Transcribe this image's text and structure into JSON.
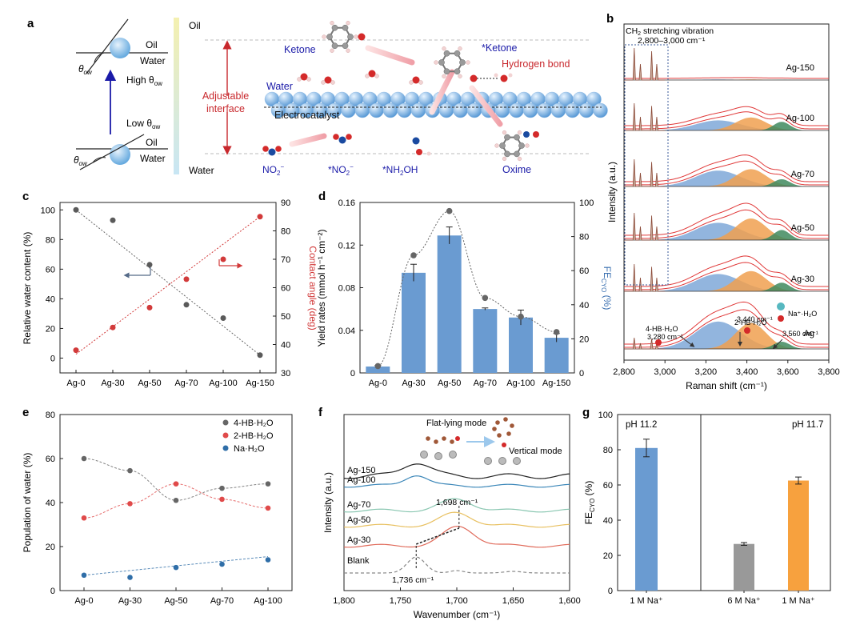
{
  "panel_labels": {
    "a": "a",
    "b": "b",
    "c": "c",
    "d": "d",
    "e": "e",
    "f": "f",
    "g": "g"
  },
  "schematic": {
    "oil_water_top": {
      "oil": "Oil",
      "water": "Water",
      "theta": "θ",
      "theta_sub": "ow",
      "note": "High θ",
      "note_sub": "ow"
    },
    "oil_water_bottom": {
      "oil": "Oil",
      "water": "Water",
      "theta": "θ",
      "theta_sub": "ow",
      "note": "Low θ",
      "note_sub": "ow"
    },
    "gradient_top": "Oil",
    "gradient_bottom": "Water",
    "interface_line1": "Adjustable",
    "interface_line2": "interface",
    "labels": {
      "ketone": "Ketone",
      "star_ketone": "*Ketone",
      "hydrogen_bond": "Hydrogen bond",
      "water": "Water",
      "electrocatalyst": "Electrocatalyst",
      "no2": "NO",
      "no2_sub": "2",
      "no2_sup": "−",
      "star_no2": "*NO",
      "star_no2_sub": "2",
      "star_no2_sup": "−",
      "star_nh2oh": "*NH",
      "star_nh2oh_sub": "2",
      "star_nh2oh_tail": "OH",
      "oxime": "Oxime"
    }
  },
  "chart_data": [
    {
      "panel": "b",
      "type": "line",
      "xlabel": "Raman shift (cm⁻¹)",
      "ylabel": "Intensity (a.u.)",
      "xlim": [
        2800,
        3800
      ],
      "xticks": [
        "2,800",
        "3,000",
        "3,200",
        "3,400",
        "3,600",
        "3,800"
      ],
      "box_label1": "CH",
      "box_label1_sub": "2",
      "box_label1_tail": " stretching vibration",
      "box_label2": "2,800–3,000 cm⁻¹",
      "series": [
        {
          "name": "Ag-150",
          "peaks": {
            "hb4": 0.02,
            "hb2": 0.02,
            "na": 0.01
          }
        },
        {
          "name": "Ag-100",
          "peaks": {
            "hb4": 0.35,
            "hb2": 0.45,
            "na": 0.3
          }
        },
        {
          "name": "Ag-70",
          "peaks": {
            "hb4": 0.55,
            "hb2": 0.6,
            "na": 0.25
          }
        },
        {
          "name": "Ag-50",
          "peaks": {
            "hb4": 0.6,
            "hb2": 0.75,
            "na": 0.35
          }
        },
        {
          "name": "Ag-30",
          "peaks": {
            "hb4": 0.6,
            "hb2": 0.7,
            "na": 0.3
          }
        },
        {
          "name": "Ag",
          "peaks": {
            "hb4": 0.95,
            "hb2": 0.9,
            "na": 0.25
          }
        }
      ],
      "annotations": {
        "hb4": "4-HB·H₂O",
        "hb2": "2-HB·H₂O",
        "na": "Na⁺·H₂O",
        "pk1": "3,280 cm⁻¹",
        "pk2": "3,440 cm⁻¹",
        "pk3": "3,560 cm⁻¹"
      },
      "colors": {
        "hb4": "#7fa8d8",
        "hb2": "#f0a050",
        "na": "#3f8a5e",
        "envelope": "#e03a3a",
        "ch": "#8b4a38"
      }
    },
    {
      "panel": "c",
      "type": "scatter",
      "categories": [
        "Ag-0",
        "Ag-30",
        "Ag-50",
        "Ag-70",
        "Ag-100",
        "Ag-150"
      ],
      "ylabel": "Relative water content (%)",
      "y2label": "Contact angle (deg)",
      "ylim": [
        -10,
        105
      ],
      "yticks": [
        0,
        20,
        40,
        60,
        80,
        100
      ],
      "y2lim": [
        30,
        90
      ],
      "y2ticks": [
        30,
        40,
        50,
        60,
        70,
        80,
        90
      ],
      "series": [
        {
          "axis": "left",
          "color": "#5a5a5a",
          "values": [
            100,
            93,
            63,
            36,
            27,
            2
          ]
        },
        {
          "axis": "right",
          "color": "#d23a3a",
          "values": [
            38,
            46,
            53,
            63,
            70,
            85
          ]
        }
      ]
    },
    {
      "panel": "d",
      "type": "bar",
      "categories": [
        "Ag-0",
        "Ag-30",
        "Ag-50",
        "Ag-70",
        "Ag-100",
        "Ag-150"
      ],
      "ylabel": "Yield rates (mmol h⁻¹ cm⁻²)",
      "y2label": "FE",
      "y2label_sub": "CYO",
      "y2label_tail": " (%)",
      "ylim": [
        0,
        0.16
      ],
      "yticks": [
        "0",
        "0.04",
        "0.08",
        "0.12",
        "0.16"
      ],
      "y2lim": [
        0,
        100
      ],
      "y2ticks": [
        0,
        20,
        40,
        60,
        80,
        100
      ],
      "bars": [
        0.006,
        0.094,
        0.129,
        0.06,
        0.052,
        0.033
      ],
      "bar_errors": [
        0.001,
        0.008,
        0.008,
        0.001,
        0.007,
        0.004
      ],
      "fe": [
        4,
        69,
        95,
        44,
        33,
        24
      ],
      "bar_color": "#6a9bd1"
    },
    {
      "panel": "e",
      "type": "scatter",
      "categories": [
        "Ag-0",
        "Ag-30",
        "Ag-50",
        "Ag-70",
        "Ag-100"
      ],
      "ylabel": "Population of water (%)",
      "ylim": [
        0,
        80
      ],
      "yticks": [
        0,
        20,
        40,
        60,
        80
      ],
      "series": [
        {
          "name": "4-HB·H₂O",
          "color": "#666666",
          "values": [
            60,
            54.5,
            41,
            46.5,
            48.5
          ]
        },
        {
          "name": "2-HB·H₂O",
          "color": "#e04a4a",
          "values": [
            33,
            39.5,
            48.5,
            41.5,
            37.5
          ]
        },
        {
          "name": "Na·H₂O",
          "color": "#2f6ea8",
          "values": [
            7,
            6,
            10.5,
            12,
            14
          ]
        }
      ],
      "legend": "top-right"
    },
    {
      "panel": "f",
      "type": "line",
      "xlabel": "Wavenumber (cm⁻¹)",
      "ylabel": "Intensity (a.u.)",
      "xlim": [
        1800,
        1600
      ],
      "xticks": [
        "1,800",
        "1,750",
        "1,700",
        "1,650",
        "1,600"
      ],
      "series": [
        {
          "name": "Ag-150",
          "color": "#222222"
        },
        {
          "name": "Ag-100",
          "color": "#3a86b8"
        },
        {
          "name": "Ag-70",
          "color": "#88c6b0"
        },
        {
          "name": "Ag-50",
          "color": "#e8c060"
        },
        {
          "name": "Ag-30",
          "color": "#e06a5a"
        },
        {
          "name": "Blank",
          "color": "#888888"
        }
      ],
      "annotations": {
        "flat": "Flat-lying mode",
        "vertical": "Vertical mode",
        "pk_hi": "1,698 cm⁻¹",
        "pk_lo": "1,736 cm⁻¹"
      }
    },
    {
      "panel": "g",
      "type": "bar",
      "ylabel": "FE",
      "ylabel_sub": "CYO",
      "ylabel_tail": " (%)",
      "ylim": [
        0,
        100
      ],
      "yticks": [
        0,
        20,
        40,
        60,
        80,
        100
      ],
      "groups": [
        {
          "label": "pH 11.2"
        },
        {
          "label": "pH 11.7"
        }
      ],
      "bars": [
        {
          "label": "1 M Na⁺",
          "value": 81,
          "error": 5,
          "color": "#6a9bd1"
        },
        {
          "label": "6 M Na⁺",
          "value": 26.5,
          "error": 0.8,
          "color": "#999999"
        },
        {
          "label": "1 M Na⁺",
          "value": 62.5,
          "error": 2,
          "color": "#f7a13e"
        }
      ]
    }
  ]
}
